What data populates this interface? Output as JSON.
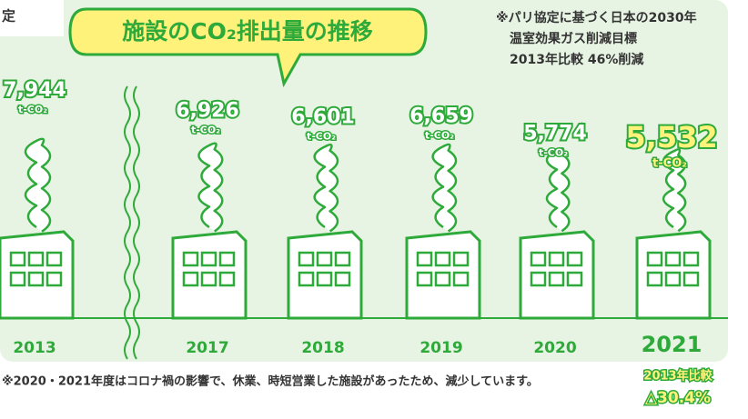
{
  "corner_text": "定",
  "chart_data": {
    "type": "pictograph",
    "title": "施設のCO₂排出量の推移",
    "note": [
      "※パリ協定に基づく日本の2030年",
      "温室効果ガス削減目標",
      "2013年比較 46%削減"
    ],
    "unit": "t-CO₂",
    "categories": [
      "2013",
      "2017",
      "2018",
      "2019",
      "2020",
      "2021"
    ],
    "values": [
      7944,
      6926,
      6601,
      6659,
      5774,
      5532
    ],
    "value_labels": [
      "7,944",
      "6,926",
      "6,601",
      "6,659",
      "5,774",
      "5,532"
    ],
    "color": "#2eaa3a",
    "highlight_color": "#fff27a",
    "footnote": "※2020・2021年度はコロナ禍の影響で、休業、時短営業した施設があったため、減少しています。",
    "comparison": [
      "2013年比較",
      "△30.4%"
    ]
  }
}
